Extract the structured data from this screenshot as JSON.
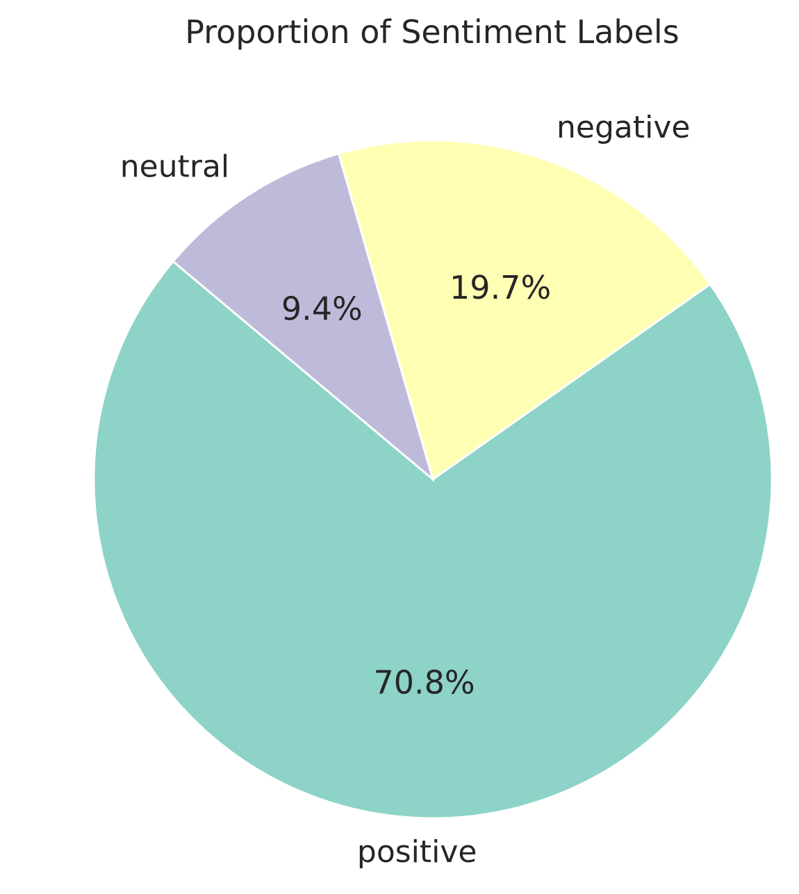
{
  "chart_data": {
    "type": "pie",
    "title": "Proportion of Sentiment Labels",
    "slices": [
      {
        "label": "positive",
        "value": 70.8,
        "pct_label": "70.8%",
        "color": "#8dd3c7"
      },
      {
        "label": "negative",
        "value": 19.7,
        "pct_label": "19.7%",
        "color": "#ffffb3"
      },
      {
        "label": "neutral",
        "value": 9.4,
        "pct_label": "9.4%",
        "color": "#bebada"
      }
    ],
    "wedge_edge_color": "#ffffff",
    "legend": "none"
  }
}
